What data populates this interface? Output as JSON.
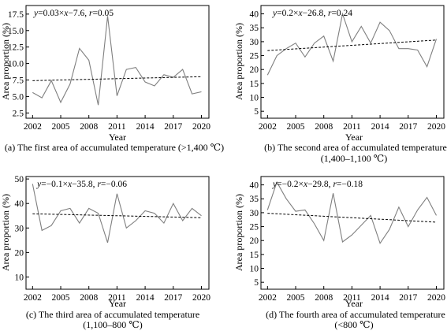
{
  "chart_data": [
    {
      "type": "line",
      "x": [
        2002,
        2003,
        2004,
        2005,
        2006,
        2007,
        2008,
        2009,
        2010,
        2011,
        2012,
        2013,
        2014,
        2015,
        2016,
        2017,
        2018,
        2019,
        2020
      ],
      "series": [
        {
          "values": [
            5.6,
            4.8,
            7.4,
            4.1,
            6.9,
            12.3,
            10.5,
            3.7,
            17.2,
            5.1,
            9.1,
            9.4,
            7.2,
            6.6,
            8.3,
            7.9,
            9.1,
            5.4,
            5.7
          ]
        }
      ],
      "trendline": {
        "x": [
          2002,
          2020
        ],
        "y": [
          7.4,
          8.0
        ]
      },
      "equation_prefix": "y",
      "equation_middle": "=0.03×",
      "equation_x": "x",
      "equation_suffix": "−7.6, ",
      "equation_r": "r",
      "equation_r_value": "=0.05",
      "ylabel": "Area proportion (%)",
      "xlabel": "Year",
      "caption_lines": [
        "(a) The first area of accumulated temperature (>1,400 ℃)"
      ],
      "xlim": [
        2001.3,
        2020.8
      ],
      "ylim": [
        1.7,
        18.8
      ],
      "xticks": [
        2002,
        2005,
        2008,
        2011,
        2014,
        2017,
        2020
      ],
      "yticks": [
        2.5,
        5.0,
        7.5,
        10.0,
        12.5,
        15.0,
        17.5
      ],
      "ytick_labels": [
        "2.5",
        "5.0",
        "7.5",
        "10.0",
        "12.5",
        "15.0",
        "17.5"
      ],
      "grid": false
    },
    {
      "type": "line",
      "x": [
        2002,
        2003,
        2004,
        2005,
        2006,
        2007,
        2008,
        2009,
        2010,
        2011,
        2012,
        2013,
        2014,
        2015,
        2016,
        2017,
        2018,
        2019,
        2020
      ],
      "series": [
        {
          "values": [
            18,
            25,
            27.5,
            29.5,
            24.5,
            29.5,
            32,
            23,
            40,
            30,
            35.5,
            29.5,
            37,
            34,
            27.5,
            27.5,
            27,
            21,
            31
          ]
        }
      ],
      "trendline": {
        "x": [
          2002,
          2020
        ],
        "y": [
          26.8,
          30.6
        ]
      },
      "equation_prefix": "y",
      "equation_middle": "=0.2×",
      "equation_x": "x",
      "equation_suffix": "−26.8, ",
      "equation_r": "r",
      "equation_r_value": "=0.24",
      "ylabel": "Area proportion (%)",
      "xlabel": "Year",
      "caption_lines": [
        "(b) The second area of accumulated temperature",
        "(1,400–1,100 ℃)"
      ],
      "xlim": [
        2001.3,
        2020.8
      ],
      "ylim": [
        2.5,
        43
      ],
      "xticks": [
        2002,
        2005,
        2008,
        2011,
        2014,
        2017,
        2020
      ],
      "yticks": [
        5,
        10,
        15,
        20,
        25,
        30,
        35,
        40
      ],
      "ytick_labels": [
        "5",
        "10",
        "15",
        "20",
        "25",
        "30",
        "35",
        "40"
      ],
      "grid": false
    },
    {
      "type": "line",
      "x": [
        2002,
        2003,
        2004,
        2005,
        2006,
        2007,
        2008,
        2009,
        2010,
        2011,
        2012,
        2013,
        2014,
        2015,
        2016,
        2017,
        2018,
        2019,
        2020
      ],
      "series": [
        {
          "values": [
            48,
            29,
            31,
            37,
            38,
            32,
            38,
            36,
            24,
            44,
            30,
            33,
            37,
            36,
            32,
            40,
            33,
            38,
            35
          ]
        }
      ],
      "trendline": {
        "x": [
          2002,
          2020
        ],
        "y": [
          35.8,
          34.2
        ]
      },
      "equation_prefix": "y",
      "equation_middle": "=−0.1×",
      "equation_x": "x",
      "equation_suffix": "−35.8, ",
      "equation_r": "r",
      "equation_r_value": "=−0.06",
      "ylabel": "Area proportion (%)",
      "xlabel": "Year",
      "caption_lines": [
        "(c) The third area of accumulated temperature",
        "(1,100–800 ℃)"
      ],
      "xlim": [
        2001.3,
        2020.8
      ],
      "ylim": [
        5,
        51
      ],
      "xticks": [
        2002,
        2005,
        2008,
        2011,
        2014,
        2017,
        2020
      ],
      "yticks": [
        10,
        20,
        30,
        40,
        50
      ],
      "ytick_labels": [
        "10",
        "20",
        "30",
        "40",
        "50"
      ],
      "grid": false
    },
    {
      "type": "line",
      "x": [
        2002,
        2003,
        2004,
        2005,
        2006,
        2007,
        2008,
        2009,
        2010,
        2011,
        2012,
        2013,
        2014,
        2015,
        2016,
        2017,
        2018,
        2019,
        2020
      ],
      "series": [
        {
          "values": [
            31,
            41,
            35,
            30.5,
            31,
            26,
            20,
            37,
            19.5,
            22,
            25.5,
            29,
            19,
            24,
            32,
            25,
            31,
            35.5,
            29
          ]
        }
      ],
      "trendline": {
        "x": [
          2002,
          2020
        ],
        "y": [
          29.8,
          26.6
        ]
      },
      "equation_prefix": "y",
      "equation_middle": "=−0.2×",
      "equation_x": "x",
      "equation_suffix": "−29.8, ",
      "equation_r": "r",
      "equation_r_value": "=−0.18",
      "ylabel": "Area proportion (%)",
      "xlabel": "Year",
      "caption_lines": [
        "(d) The fourth area of accumulated temperature",
        "(<800 ℃)"
      ],
      "xlim": [
        2001.3,
        2020.8
      ],
      "ylim": [
        2.5,
        43
      ],
      "xticks": [
        2002,
        2005,
        2008,
        2011,
        2014,
        2017,
        2020
      ],
      "yticks": [
        5,
        10,
        15,
        20,
        25,
        30,
        35,
        40
      ],
      "ytick_labels": [
        "5",
        "10",
        "15",
        "20",
        "25",
        "30",
        "35",
        "40"
      ],
      "grid": false
    }
  ]
}
